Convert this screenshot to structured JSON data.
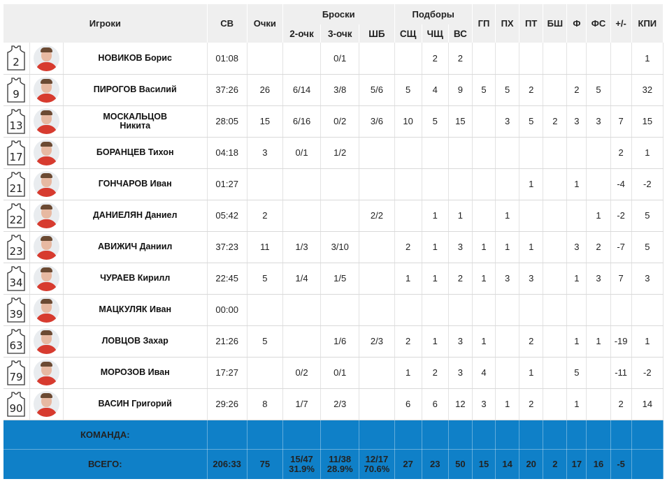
{
  "headers": {
    "players": "Игроки",
    "time": "СВ",
    "points": "Очки",
    "shots": "Броски",
    "two_pt": "2-очк",
    "three_pt": "3-очк",
    "free_throws": "ШБ",
    "rebounds": "Подборы",
    "def_reb": "СЩ",
    "off_reb": "ЧЩ",
    "total_reb": "ВС",
    "assists": "ГП",
    "steals": "ПХ",
    "turnovers": "ПТ",
    "blocks": "БШ",
    "fouls": "Ф",
    "fouls_drawn": "ФС",
    "plus_minus": "+/-",
    "efficiency": "КПИ"
  },
  "players": [
    {
      "number": "2",
      "name": "НОВИКОВ Борис",
      "min": "01:08",
      "pts": "",
      "fg2": "",
      "fg3": "0/1",
      "ft": "",
      "dr": "",
      "or": "2",
      "tr": "2",
      "as": "",
      "st": "",
      "to": "",
      "bs": "",
      "f": "",
      "fd": "",
      "pm": "",
      "eff": "1"
    },
    {
      "number": "9",
      "name": "ПИРОГОВ Василий",
      "min": "37:26",
      "pts": "26",
      "fg2": "6/14",
      "fg3": "3/8",
      "ft": "5/6",
      "dr": "5",
      "or": "4",
      "tr": "9",
      "as": "5",
      "st": "5",
      "to": "2",
      "bs": "",
      "f": "2",
      "fd": "5",
      "pm": "",
      "eff": "32"
    },
    {
      "number": "13",
      "name": "МОСКАЛЬЦОВ\nНикита",
      "min": "28:05",
      "pts": "15",
      "fg2": "6/16",
      "fg3": "0/2",
      "ft": "3/6",
      "dr": "10",
      "or": "5",
      "tr": "15",
      "as": "",
      "st": "3",
      "to": "5",
      "bs": "2",
      "f": "3",
      "fd": "3",
      "pm": "7",
      "eff": "15"
    },
    {
      "number": "17",
      "name": "БОРАНЦЕВ Тихон",
      "min": "04:18",
      "pts": "3",
      "fg2": "0/1",
      "fg3": "1/2",
      "ft": "",
      "dr": "",
      "or": "",
      "tr": "",
      "as": "",
      "st": "",
      "to": "",
      "bs": "",
      "f": "",
      "fd": "",
      "pm": "2",
      "eff": "1"
    },
    {
      "number": "21",
      "name": "ГОНЧАРОВ Иван",
      "min": "01:27",
      "pts": "",
      "fg2": "",
      "fg3": "",
      "ft": "",
      "dr": "",
      "or": "",
      "tr": "",
      "as": "",
      "st": "",
      "to": "1",
      "bs": "",
      "f": "1",
      "fd": "",
      "pm": "-4",
      "eff": "-2"
    },
    {
      "number": "22",
      "name": "ДАНИЕЛЯН Даниел",
      "min": "05:42",
      "pts": "2",
      "fg2": "",
      "fg3": "",
      "ft": "2/2",
      "dr": "",
      "or": "1",
      "tr": "1",
      "as": "",
      "st": "1",
      "to": "",
      "bs": "",
      "f": "",
      "fd": "1",
      "pm": "-2",
      "eff": "5"
    },
    {
      "number": "23",
      "name": "АВИЖИЧ Даниил",
      "min": "37:23",
      "pts": "11",
      "fg2": "1/3",
      "fg3": "3/10",
      "ft": "",
      "dr": "2",
      "or": "1",
      "tr": "3",
      "as": "1",
      "st": "1",
      "to": "1",
      "bs": "",
      "f": "3",
      "fd": "2",
      "pm": "-7",
      "eff": "5"
    },
    {
      "number": "34",
      "name": "ЧУРАЕВ Кирилл",
      "min": "22:45",
      "pts": "5",
      "fg2": "1/4",
      "fg3": "1/5",
      "ft": "",
      "dr": "1",
      "or": "1",
      "tr": "2",
      "as": "1",
      "st": "3",
      "to": "3",
      "bs": "",
      "f": "1",
      "fd": "3",
      "pm": "7",
      "eff": "3"
    },
    {
      "number": "39",
      "name": "МАЦКУЛЯК Иван",
      "min": "00:00",
      "pts": "",
      "fg2": "",
      "fg3": "",
      "ft": "",
      "dr": "",
      "or": "",
      "tr": "",
      "as": "",
      "st": "",
      "to": "",
      "bs": "",
      "f": "",
      "fd": "",
      "pm": "",
      "eff": ""
    },
    {
      "number": "63",
      "name": "ЛОВЦОВ Захар",
      "min": "21:26",
      "pts": "5",
      "fg2": "",
      "fg3": "1/6",
      "ft": "2/3",
      "dr": "2",
      "or": "1",
      "tr": "3",
      "as": "1",
      "st": "",
      "to": "2",
      "bs": "",
      "f": "1",
      "fd": "1",
      "pm": "-19",
      "eff": "1"
    },
    {
      "number": "79",
      "name": "МОРОЗОВ Иван",
      "min": "17:27",
      "pts": "",
      "fg2": "0/2",
      "fg3": "0/1",
      "ft": "",
      "dr": "1",
      "or": "2",
      "tr": "3",
      "as": "4",
      "st": "",
      "to": "1",
      "bs": "",
      "f": "5",
      "fd": "",
      "pm": "-11",
      "eff": "-2"
    },
    {
      "number": "90",
      "name": "ВАСИН Григорий",
      "min": "29:26",
      "pts": "8",
      "fg2": "1/7",
      "fg3": "2/3",
      "ft": "",
      "dr": "6",
      "or": "6",
      "tr": "12",
      "as": "3",
      "st": "1",
      "to": "2",
      "bs": "",
      "f": "1",
      "fd": "",
      "pm": "2",
      "eff": "14"
    }
  ],
  "team": {
    "label": "КОМАНДА:"
  },
  "total": {
    "label": "ВСЕГО:",
    "min": "206:33",
    "pts": "75",
    "fg2": "15/47",
    "fg2_pct": "31.9%",
    "fg3": "11/38",
    "fg3_pct": "28.9%",
    "ft": "12/17",
    "ft_pct": "70.6%",
    "dr": "27",
    "or": "23",
    "tr": "50",
    "as": "15",
    "st": "14",
    "to": "20",
    "bs": "2",
    "f": "17",
    "fd": "16",
    "pm": "-5",
    "eff": ""
  },
  "colors": {
    "header_bg": "#efefef",
    "footer_bg": "#0f80c8",
    "avatar_shirt": "#d73b2f"
  }
}
